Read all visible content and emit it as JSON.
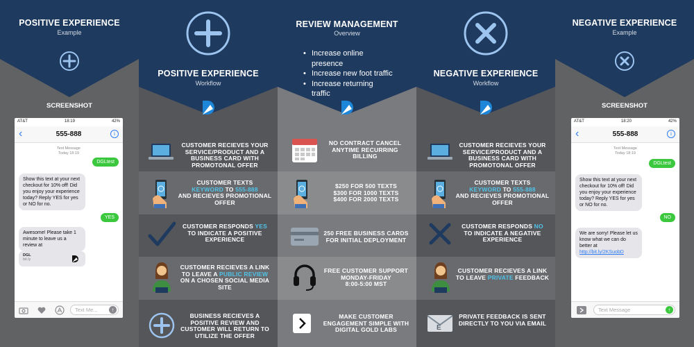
{
  "colors": {
    "navy": "#1e3a5f",
    "cyan": "#4fc3e8",
    "green": "#3bc83e",
    "blue": "#2f7df6"
  },
  "headers": {
    "positive_example": {
      "title": "POSITIVE EXPERIENCE",
      "subtitle": "Example"
    },
    "positive_workflow": {
      "title": "POSITIVE EXPERIENCE",
      "subtitle": "Workflow"
    },
    "review_management": {
      "title": "REVIEW MANAGEMENT",
      "subtitle": "Overview",
      "bullets": [
        "Increase online presence",
        "Increase new foot traffic",
        "Increase returning traffic"
      ]
    },
    "negative_workflow": {
      "title": "NEGATIVE EXPERIENCE",
      "subtitle": "Workflow"
    },
    "negative_example": {
      "title": "NEGATIVE EXPERIENCE",
      "subtitle": "Example"
    }
  },
  "screenshot_label": "SCREENSHOT",
  "phone_left": {
    "carrier": "AT&T",
    "time": "18:19",
    "battery": "42%",
    "contact": "555-888",
    "meta_line1": "Text Message",
    "meta_line2": "Today 18:19",
    "out1": "DGLtest",
    "in1": "Show this text at your next checkout for 10% off! Did you enjoy your experience today? Reply YES for yes or NO for no.",
    "out2": "YES",
    "in2": "Awesome! Please take 1 minute to leave us a review at",
    "card_title": "DGL",
    "card_sub": "bit.ly",
    "input_placeholder": "Text Me..."
  },
  "phone_right": {
    "carrier": "AT&T",
    "time": "18:20",
    "battery": "42%",
    "contact": "555-888",
    "meta_line1": "Text Message",
    "meta_line2": "Today 18:19",
    "out1": "DGLtest",
    "in1": "Show this text at your next checkout for 10% off! Did you enjoy your experience today? Reply YES for yes or NO for no.",
    "out2": "NO",
    "in2": "We are sorry! Please let us know what we can do better at",
    "in2_link": "http://bit.ly/2KSuobD",
    "input_placeholder": "Text Message"
  },
  "positive_steps": {
    "s1": "CUSTOMER RECIEVES YOUR SERVICE/PRODUCT AND A BUSINESS CARD WITH PROMOTONAL OFFER",
    "s2a": "CUSTOMER TEXTS",
    "s2b": "KEYWORD",
    "s2c": "TO",
    "s2d": "555-888",
    "s2e": "AND RECIEVES PROMOTIONAL OFFER",
    "s3a": "CUSTOMER RESPONDS",
    "s3b": "YES",
    "s3c": "TO INDICATE A POSITIVE EXPERIENCE",
    "s4a": "CUSTOMER RECIEVES A LINK TO LEAVE A",
    "s4b": "PUBLIC REVIEW",
    "s4c": "ON A CHOSEN SOCIAL MEDIA SITE",
    "s5": "BUSINESS RECIEVES A POSITIVE REVIEW AND CUSTOMER WILL RETURN TO UTILIZE THE OFFER"
  },
  "overview_items": {
    "i1": "NO CONTRACT CANCEL ANYTIME RECURRING BILLING",
    "i2a": "$250 FOR 500 TEXTS",
    "i2b": "$300 FOR 1000 TEXTS",
    "i2c": "$400 FOR 2000 TEXTS",
    "i3": "250 FREE BUSINESS CARDS FOR INITIAL DEPLOYMENT",
    "i4a": "FREE CUSTOMER SUPPORT",
    "i4b": "MONDAY-FRIDAY",
    "i4c": "8:00-5:00 MST",
    "i5": "MAKE CUSTOMER ENGAGEMENT SIMPLE WITH DIGITAL GOLD LABS"
  },
  "negative_steps": {
    "s1": "CUSTOMER RECIEVES YOUR SERVICE/PRODUCT AND A BUSINESS CARD WITH PROMOTONAL OFFER",
    "s2a": "CUSTOMER TEXTS",
    "s2b": "KEYWORD",
    "s2c": "TO",
    "s2d": "555-888",
    "s2e": "AND RECIEVES PROMOTIONAL OFFER",
    "s3a": "CUSTOMER RESPONDS",
    "s3b": "NO",
    "s3c": "TO INDICATE A NEGATIVE EXPERIENCE",
    "s4a": "CUSTOMER RECIEVES A LINK TO LEAVE",
    "s4b": "PRIVATE",
    "s4c": "FEEDBACK",
    "s5": "PRIVATE FEEDBACK IS SENT DIRECTLY TO YOU VIA EMAIL"
  }
}
